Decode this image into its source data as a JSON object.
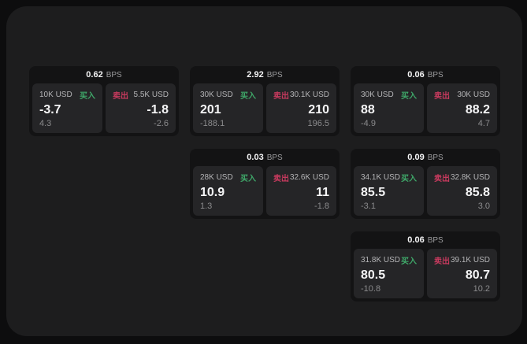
{
  "labels": {
    "bps_unit": "BPS",
    "buy": "买入",
    "sell": "卖出"
  },
  "colors": {
    "page_background": "#0d0d0e",
    "panel_background": "#1d1d1e",
    "card_background": "#131314",
    "side_panel_background": "#252527",
    "buy_green": "#3fa869",
    "sell_red": "#c73a5e",
    "primary_text": "#f5f5f6",
    "secondary_text": "#9c9c9e"
  },
  "cards": [
    {
      "bps": "0.62",
      "buy": {
        "size": "10K USD",
        "price": "-3.7",
        "change": "4.3"
      },
      "sell": {
        "size": "5.5K USD",
        "price": "-1.8",
        "change": "-2.6"
      }
    },
    {
      "bps": "2.92",
      "buy": {
        "size": "30K USD",
        "price": "201",
        "change": "-188.1"
      },
      "sell": {
        "size": "30.1K USD",
        "price": "210",
        "change": "196.5"
      }
    },
    {
      "bps": "0.06",
      "buy": {
        "size": "30K USD",
        "price": "88",
        "change": "-4.9"
      },
      "sell": {
        "size": "30K USD",
        "price": "88.2",
        "change": "4.7"
      }
    },
    {
      "bps": "0.03",
      "buy": {
        "size": "28K USD",
        "price": "10.9",
        "change": "1.3"
      },
      "sell": {
        "size": "32.6K USD",
        "price": "11",
        "change": "-1.8"
      }
    },
    {
      "bps": "0.09",
      "buy": {
        "size": "34.1K USD",
        "price": "85.5",
        "change": "-3.1"
      },
      "sell": {
        "size": "32.8K USD",
        "price": "85.8",
        "change": "3.0"
      }
    },
    {
      "bps": "0.06",
      "buy": {
        "size": "31.8K USD",
        "price": "80.5",
        "change": "-10.8"
      },
      "sell": {
        "size": "39.1K USD",
        "price": "80.7",
        "change": "10.2"
      }
    }
  ]
}
